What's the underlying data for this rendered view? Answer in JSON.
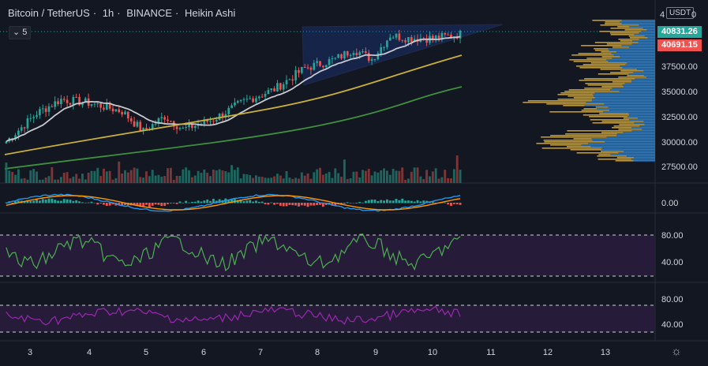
{
  "header": {
    "symbol": "Bitcoin / TetherUS",
    "interval": "1h",
    "exchange": "BINANCE",
    "chart_style": "Heikin Ashi",
    "separator": "·",
    "slash_sep": "·"
  },
  "indicator_toggle": {
    "label": "5",
    "icon": "chevron-down-icon"
  },
  "price_scale": {
    "unit": "USDT",
    "top_partial": "4",
    "top_zero": "0",
    "last_price": "40831.26",
    "prev_price": "40691.15",
    "ticks": [
      "37500.00",
      "35000.00",
      "32500.00",
      "30000.00",
      "27500.00"
    ]
  },
  "macd_pane": {
    "ticks": [
      "0.00"
    ]
  },
  "oscillator_pane_1": {
    "ticks": [
      "80.00",
      "40.00"
    ]
  },
  "oscillator_pane_2": {
    "ticks": [
      "80.00",
      "40.00"
    ]
  },
  "time_axis": {
    "ticks": [
      "3",
      "4",
      "5",
      "6",
      "7",
      "8",
      "9",
      "10",
      "11",
      "12",
      "13"
    ]
  },
  "colors": {
    "background": "#131722",
    "up_candle": "#26a69a",
    "down_candle": "#ef5350",
    "last_price_tag": "#26a69a",
    "prev_price_tag": "#ef5350",
    "ma_white": "#c8c8d0",
    "ma_yellow": "#c9b03a",
    "ma_green": "#3f8f3f",
    "vp_blue": "#1e88e5",
    "vp_gold": "#d4a017",
    "osc_green": "#4caf50",
    "osc_purple": "#9c27b0",
    "band_fill": "#2a1d3d"
  },
  "icons": {
    "settings": "gear-icon"
  }
}
